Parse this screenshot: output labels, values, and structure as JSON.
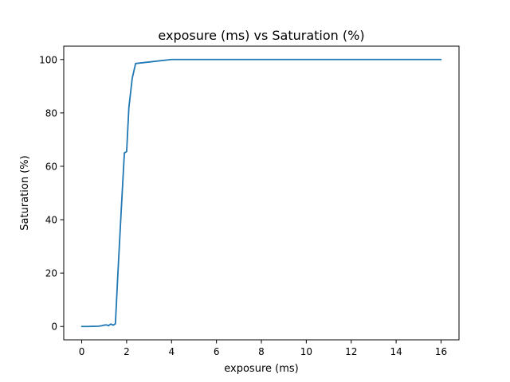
{
  "chart_data": {
    "type": "line",
    "title": "exposure (ms) vs Saturation (%)",
    "xlabel": "exposure (ms)",
    "ylabel": "Saturation (%)",
    "xlim": [
      -0.8,
      16.8
    ],
    "ylim": [
      -5,
      105
    ],
    "xticks": [
      0,
      2,
      4,
      6,
      8,
      10,
      12,
      14,
      16
    ],
    "yticks": [
      0,
      20,
      40,
      60,
      80,
      100
    ],
    "grid": false,
    "legend": "none",
    "series": [
      {
        "color": "#1f77b4",
        "x": [
          0,
          0.25,
          0.5,
          0.75,
          0.9,
          1.0,
          1.1,
          1.2,
          1.25,
          1.3,
          1.4,
          1.5,
          1.6,
          1.75,
          1.9,
          2.0,
          2.1,
          2.25,
          2.4,
          4.0,
          6.0,
          8.0,
          16.0
        ],
        "y": [
          0,
          0,
          0.05,
          0.1,
          0.3,
          0.5,
          0.6,
          0.3,
          0.7,
          0.9,
          0.5,
          1.0,
          18,
          42,
          65,
          65.5,
          82,
          93,
          98.5,
          100,
          100,
          100,
          100
        ]
      }
    ]
  }
}
